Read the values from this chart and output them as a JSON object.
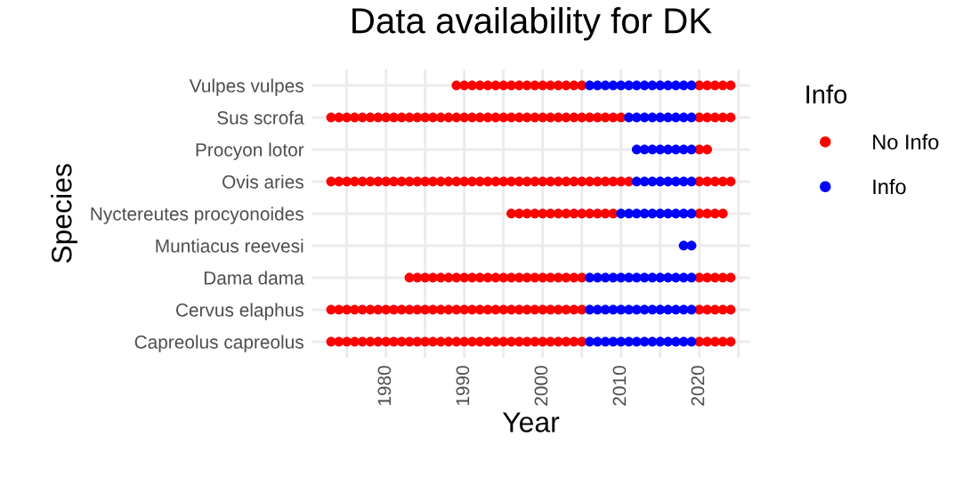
{
  "chart_data": {
    "type": "scatter",
    "title": "Data availability for DK",
    "xlabel": "Year",
    "ylabel": "Species",
    "legend_title": "Info",
    "orientation": "horizontal",
    "categories": [
      "Vulpes vulpes",
      "Sus scrofa",
      "Procyon lotor",
      "Ovis aries",
      "Nyctereutes procyonoides",
      "Muntiacus reevesi",
      "Dama dama",
      "Cervus elaphus",
      "Capreolus capreolus"
    ],
    "series": [
      {
        "name": "No Info",
        "color": "#ff0000",
        "x": [
          "Vulpes vulpes",
          "Vulpes vulpes",
          "Vulpes vulpes",
          "Vulpes vulpes",
          "Vulpes vulpes",
          "Vulpes vulpes",
          "Vulpes vulpes",
          "Vulpes vulpes",
          "Vulpes vulpes",
          "Vulpes vulpes",
          "Vulpes vulpes",
          "Vulpes vulpes",
          "Vulpes vulpes",
          "Vulpes vulpes",
          "Vulpes vulpes",
          "Vulpes vulpes",
          "Vulpes vulpes",
          "Vulpes vulpes",
          "Vulpes vulpes",
          "Vulpes vulpes",
          "Vulpes vulpes",
          "Vulpes vulpes",
          "Sus scrofa",
          "Sus scrofa",
          "Sus scrofa",
          "Sus scrofa",
          "Sus scrofa",
          "Sus scrofa",
          "Sus scrofa",
          "Sus scrofa",
          "Sus scrofa",
          "Sus scrofa",
          "Sus scrofa",
          "Sus scrofa",
          "Sus scrofa",
          "Sus scrofa",
          "Sus scrofa",
          "Sus scrofa",
          "Sus scrofa",
          "Sus scrofa",
          "Sus scrofa",
          "Sus scrofa",
          "Sus scrofa",
          "Sus scrofa",
          "Sus scrofa",
          "Sus scrofa",
          "Sus scrofa",
          "Sus scrofa",
          "Sus scrofa",
          "Sus scrofa",
          "Sus scrofa",
          "Sus scrofa",
          "Sus scrofa",
          "Sus scrofa",
          "Sus scrofa",
          "Sus scrofa",
          "Sus scrofa",
          "Sus scrofa",
          "Sus scrofa",
          "Sus scrofa",
          "Sus scrofa",
          "Sus scrofa",
          "Sus scrofa",
          "Sus scrofa",
          "Sus scrofa",
          "Procyon lotor",
          "Procyon lotor",
          "Ovis aries",
          "Ovis aries",
          "Ovis aries",
          "Ovis aries",
          "Ovis aries",
          "Ovis aries",
          "Ovis aries",
          "Ovis aries",
          "Ovis aries",
          "Ovis aries",
          "Ovis aries",
          "Ovis aries",
          "Ovis aries",
          "Ovis aries",
          "Ovis aries",
          "Ovis aries",
          "Ovis aries",
          "Ovis aries",
          "Ovis aries",
          "Ovis aries",
          "Ovis aries",
          "Ovis aries",
          "Ovis aries",
          "Ovis aries",
          "Ovis aries",
          "Ovis aries",
          "Ovis aries",
          "Ovis aries",
          "Ovis aries",
          "Ovis aries",
          "Ovis aries",
          "Ovis aries",
          "Ovis aries",
          "Ovis aries",
          "Ovis aries",
          "Ovis aries",
          "Ovis aries",
          "Ovis aries",
          "Ovis aries",
          "Ovis aries",
          "Ovis aries",
          "Ovis aries",
          "Ovis aries",
          "Ovis aries",
          "Nyctereutes procyonoides",
          "Nyctereutes procyonoides",
          "Nyctereutes procyonoides",
          "Nyctereutes procyonoides",
          "Nyctereutes procyonoides",
          "Nyctereutes procyonoides",
          "Nyctereutes procyonoides",
          "Nyctereutes procyonoides",
          "Nyctereutes procyonoides",
          "Nyctereutes procyonoides",
          "Nyctereutes procyonoides",
          "Nyctereutes procyonoides",
          "Nyctereutes procyonoides",
          "Nyctereutes procyonoides",
          "Nyctereutes procyonoides",
          "Nyctereutes procyonoides",
          "Nyctereutes procyonoides",
          "Nyctereutes procyonoides",
          "Dama dama",
          "Dama dama",
          "Dama dama",
          "Dama dama",
          "Dama dama",
          "Dama dama",
          "Dama dama",
          "Dama dama",
          "Dama dama",
          "Dama dama",
          "Dama dama",
          "Dama dama",
          "Dama dama",
          "Dama dama",
          "Dama dama",
          "Dama dama",
          "Dama dama",
          "Dama dama",
          "Dama dama",
          "Dama dama",
          "Dama dama",
          "Dama dama",
          "Dama dama",
          "Dama dama",
          "Dama dama",
          "Dama dama",
          "Dama dama",
          "Dama dama",
          "Cervus elaphus",
          "Cervus elaphus",
          "Cervus elaphus",
          "Cervus elaphus",
          "Cervus elaphus",
          "Cervus elaphus",
          "Cervus elaphus",
          "Cervus elaphus",
          "Cervus elaphus",
          "Cervus elaphus",
          "Cervus elaphus",
          "Cervus elaphus",
          "Cervus elaphus",
          "Cervus elaphus",
          "Cervus elaphus",
          "Cervus elaphus",
          "Cervus elaphus",
          "Cervus elaphus",
          "Cervus elaphus",
          "Cervus elaphus",
          "Cervus elaphus",
          "Cervus elaphus",
          "Cervus elaphus",
          "Cervus elaphus",
          "Cervus elaphus",
          "Cervus elaphus",
          "Cervus elaphus",
          "Cervus elaphus",
          "Cervus elaphus",
          "Cervus elaphus",
          "Cervus elaphus",
          "Cervus elaphus",
          "Cervus elaphus",
          "Cervus elaphus",
          "Cervus elaphus",
          "Cervus elaphus",
          "Cervus elaphus",
          "Cervus elaphus",
          "Capreolus capreolus",
          "Capreolus capreolus",
          "Capreolus capreolus",
          "Capreolus capreolus",
          "Capreolus capreolus",
          "Capreolus capreolus",
          "Capreolus capreolus",
          "Capreolus capreolus",
          "Capreolus capreolus",
          "Capreolus capreolus",
          "Capreolus capreolus",
          "Capreolus capreolus",
          "Capreolus capreolus",
          "Capreolus capreolus",
          "Capreolus capreolus",
          "Capreolus capreolus",
          "Capreolus capreolus",
          "Capreolus capreolus",
          "Capreolus capreolus",
          "Capreolus capreolus",
          "Capreolus capreolus",
          "Capreolus capreolus",
          "Capreolus capreolus",
          "Capreolus capreolus",
          "Capreolus capreolus",
          "Capreolus capreolus",
          "Capreolus capreolus",
          "Capreolus capreolus",
          "Capreolus capreolus",
          "Capreolus capreolus",
          "Capreolus capreolus",
          "Capreolus capreolus",
          "Capreolus capreolus",
          "Capreolus capreolus",
          "Capreolus capreolus",
          "Capreolus capreolus",
          "Capreolus capreolus",
          "Capreolus capreolus"
        ],
        "values": [
          1989,
          1990,
          1991,
          1992,
          1993,
          1994,
          1995,
          1996,
          1997,
          1998,
          1999,
          2000,
          2001,
          2002,
          2003,
          2004,
          2005,
          2020,
          2021,
          2022,
          2023,
          2024,
          1973,
          1974,
          1975,
          1976,
          1977,
          1978,
          1979,
          1980,
          1981,
          1982,
          1983,
          1984,
          1985,
          1986,
          1987,
          1988,
          1989,
          1990,
          1991,
          1992,
          1993,
          1994,
          1995,
          1996,
          1997,
          1998,
          1999,
          2000,
          2001,
          2002,
          2003,
          2004,
          2005,
          2006,
          2007,
          2008,
          2009,
          2010,
          2020,
          2021,
          2022,
          2023,
          2024,
          2020,
          2021,
          1973,
          1974,
          1975,
          1976,
          1977,
          1978,
          1979,
          1980,
          1981,
          1982,
          1983,
          1984,
          1985,
          1986,
          1987,
          1988,
          1989,
          1990,
          1991,
          1992,
          1993,
          1994,
          1995,
          1996,
          1997,
          1998,
          1999,
          2000,
          2001,
          2002,
          2003,
          2004,
          2005,
          2006,
          2007,
          2008,
          2009,
          2010,
          2011,
          2020,
          2021,
          2022,
          2023,
          2024,
          1996,
          1997,
          1998,
          1999,
          2000,
          2001,
          2002,
          2003,
          2004,
          2005,
          2006,
          2007,
          2008,
          2009,
          2020,
          2021,
          2022,
          2023,
          1983,
          1984,
          1985,
          1986,
          1987,
          1988,
          1989,
          1990,
          1991,
          1992,
          1993,
          1994,
          1995,
          1996,
          1997,
          1998,
          1999,
          2000,
          2001,
          2002,
          2003,
          2004,
          2005,
          2020,
          2021,
          2022,
          2023,
          2024,
          1973,
          1974,
          1975,
          1976,
          1977,
          1978,
          1979,
          1980,
          1981,
          1982,
          1983,
          1984,
          1985,
          1986,
          1987,
          1988,
          1989,
          1990,
          1991,
          1992,
          1993,
          1994,
          1995,
          1996,
          1997,
          1998,
          1999,
          2000,
          2001,
          2002,
          2003,
          2004,
          2005,
          2020,
          2021,
          2022,
          2023,
          2024,
          1973,
          1974,
          1975,
          1976,
          1977,
          1978,
          1979,
          1980,
          1981,
          1982,
          1983,
          1984,
          1985,
          1986,
          1987,
          1988,
          1989,
          1990,
          1991,
          1992,
          1993,
          1994,
          1995,
          1996,
          1997,
          1998,
          1999,
          2000,
          2001,
          2002,
          2003,
          2004,
          2005,
          2020,
          2021,
          2022,
          2023,
          2024
        ]
      },
      {
        "name": "Info",
        "color": "#0000ff",
        "x": [
          "Vulpes vulpes",
          "Vulpes vulpes",
          "Vulpes vulpes",
          "Vulpes vulpes",
          "Vulpes vulpes",
          "Vulpes vulpes",
          "Vulpes vulpes",
          "Vulpes vulpes",
          "Vulpes vulpes",
          "Vulpes vulpes",
          "Vulpes vulpes",
          "Vulpes vulpes",
          "Vulpes vulpes",
          "Vulpes vulpes",
          "Sus scrofa",
          "Sus scrofa",
          "Sus scrofa",
          "Sus scrofa",
          "Sus scrofa",
          "Sus scrofa",
          "Sus scrofa",
          "Sus scrofa",
          "Sus scrofa",
          "Procyon lotor",
          "Procyon lotor",
          "Procyon lotor",
          "Procyon lotor",
          "Procyon lotor",
          "Procyon lotor",
          "Procyon lotor",
          "Procyon lotor",
          "Ovis aries",
          "Ovis aries",
          "Ovis aries",
          "Ovis aries",
          "Ovis aries",
          "Ovis aries",
          "Ovis aries",
          "Ovis aries",
          "Nyctereutes procyonoides",
          "Nyctereutes procyonoides",
          "Nyctereutes procyonoides",
          "Nyctereutes procyonoides",
          "Nyctereutes procyonoides",
          "Nyctereutes procyonoides",
          "Nyctereutes procyonoides",
          "Nyctereutes procyonoides",
          "Nyctereutes procyonoides",
          "Nyctereutes procyonoides",
          "Muntiacus reevesi",
          "Muntiacus reevesi",
          "Dama dama",
          "Dama dama",
          "Dama dama",
          "Dama dama",
          "Dama dama",
          "Dama dama",
          "Dama dama",
          "Dama dama",
          "Dama dama",
          "Dama dama",
          "Dama dama",
          "Dama dama",
          "Dama dama",
          "Dama dama",
          "Cervus elaphus",
          "Cervus elaphus",
          "Cervus elaphus",
          "Cervus elaphus",
          "Cervus elaphus",
          "Cervus elaphus",
          "Cervus elaphus",
          "Cervus elaphus",
          "Cervus elaphus",
          "Cervus elaphus",
          "Cervus elaphus",
          "Cervus elaphus",
          "Cervus elaphus",
          "Cervus elaphus",
          "Capreolus capreolus",
          "Capreolus capreolus",
          "Capreolus capreolus",
          "Capreolus capreolus",
          "Capreolus capreolus",
          "Capreolus capreolus",
          "Capreolus capreolus",
          "Capreolus capreolus",
          "Capreolus capreolus",
          "Capreolus capreolus",
          "Capreolus capreolus",
          "Capreolus capreolus",
          "Capreolus capreolus",
          "Capreolus capreolus"
        ],
        "values": [
          2006,
          2007,
          2008,
          2009,
          2010,
          2011,
          2012,
          2013,
          2014,
          2015,
          2016,
          2017,
          2018,
          2019,
          2011,
          2012,
          2013,
          2014,
          2015,
          2016,
          2017,
          2018,
          2019,
          2012,
          2013,
          2014,
          2015,
          2016,
          2017,
          2018,
          2019,
          2012,
          2013,
          2014,
          2015,
          2016,
          2017,
          2018,
          2019,
          2010,
          2011,
          2012,
          2013,
          2014,
          2015,
          2016,
          2017,
          2018,
          2019,
          2018,
          2019,
          2006,
          2007,
          2008,
          2009,
          2010,
          2011,
          2012,
          2013,
          2014,
          2015,
          2016,
          2017,
          2018,
          2019,
          2006,
          2007,
          2008,
          2009,
          2010,
          2011,
          2012,
          2013,
          2014,
          2015,
          2016,
          2017,
          2018,
          2019,
          2006,
          2007,
          2008,
          2009,
          2010,
          2011,
          2012,
          2013,
          2014,
          2015,
          2016,
          2017,
          2018,
          2019
        ]
      }
    ],
    "xlim": [
      1970.5,
      2026.5
    ],
    "xticks": [
      {
        "value": 1975,
        "label": null
      },
      1980,
      {
        "value": 1985,
        "label": null
      },
      1990,
      {
        "value": 1995,
        "label": null
      },
      2000,
      {
        "value": 2005,
        "label": null
      },
      2010,
      {
        "value": 2015,
        "label": null
      },
      2020,
      {
        "value": 2025,
        "label": null
      }
    ],
    "grid": true,
    "legend": "right",
    "marker": "circle"
  }
}
